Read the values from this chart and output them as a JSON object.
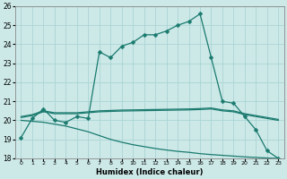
{
  "title": "",
  "xlabel": "Humidex (Indice chaleur)",
  "xlim": [
    -0.5,
    23.5
  ],
  "ylim": [
    18,
    26
  ],
  "yticks": [
    18,
    19,
    20,
    21,
    22,
    23,
    24,
    25,
    26
  ],
  "xticks": [
    0,
    1,
    2,
    3,
    4,
    5,
    6,
    7,
    8,
    9,
    10,
    11,
    12,
    13,
    14,
    15,
    16,
    17,
    18,
    19,
    20,
    21,
    22,
    23
  ],
  "bg_color": "#cce9e8",
  "grid_color": "#aad4d3",
  "line_color": "#1a7a6e",
  "curves": [
    {
      "x": [
        0,
        1,
        2,
        3,
        4,
        5,
        6,
        7,
        8,
        9,
        10,
        11,
        12,
        13,
        14,
        15,
        16,
        17,
        18,
        19,
        20,
        21,
        22,
        23
      ],
      "y": [
        19.1,
        20.1,
        20.6,
        20.0,
        19.9,
        20.2,
        20.1,
        23.6,
        23.3,
        23.9,
        24.1,
        24.5,
        24.5,
        24.7,
        25.0,
        25.2,
        25.6,
        23.3,
        21.0,
        20.9,
        20.2,
        19.5,
        18.4,
        18.0
      ],
      "marker": "D",
      "markersize": 2.5
    },
    {
      "x": [
        0,
        1,
        2,
        3,
        4,
        5,
        6,
        7,
        8,
        9,
        10,
        11,
        12,
        13,
        14,
        15,
        16,
        17,
        18,
        19,
        20,
        21,
        22,
        23
      ],
      "y": [
        20.2,
        20.3,
        20.5,
        20.4,
        20.4,
        20.4,
        20.45,
        20.5,
        20.52,
        20.54,
        20.55,
        20.56,
        20.57,
        20.58,
        20.59,
        20.6,
        20.62,
        20.65,
        20.55,
        20.5,
        20.35,
        20.25,
        20.15,
        20.05
      ],
      "marker": null,
      "markersize": 0
    },
    {
      "x": [
        0,
        1,
        2,
        3,
        4,
        5,
        6,
        7,
        8,
        9,
        10,
        11,
        12,
        13,
        14,
        15,
        16,
        17,
        18,
        19,
        20,
        21,
        22,
        23
      ],
      "y": [
        20.15,
        20.25,
        20.45,
        20.35,
        20.35,
        20.35,
        20.4,
        20.45,
        20.47,
        20.49,
        20.5,
        20.51,
        20.52,
        20.53,
        20.54,
        20.55,
        20.57,
        20.6,
        20.5,
        20.45,
        20.3,
        20.2,
        20.1,
        20.0
      ],
      "marker": null,
      "markersize": 0
    },
    {
      "x": [
        0,
        1,
        2,
        3,
        4,
        5,
        6,
        7,
        8,
        9,
        10,
        11,
        12,
        13,
        14,
        15,
        16,
        17,
        18,
        19,
        20,
        21,
        22,
        23
      ],
      "y": [
        20.0,
        19.95,
        19.9,
        19.8,
        19.7,
        19.55,
        19.4,
        19.2,
        19.0,
        18.85,
        18.72,
        18.62,
        18.52,
        18.44,
        18.37,
        18.32,
        18.25,
        18.2,
        18.16,
        18.12,
        18.08,
        18.05,
        18.02,
        18.0
      ],
      "marker": null,
      "markersize": 0
    }
  ]
}
